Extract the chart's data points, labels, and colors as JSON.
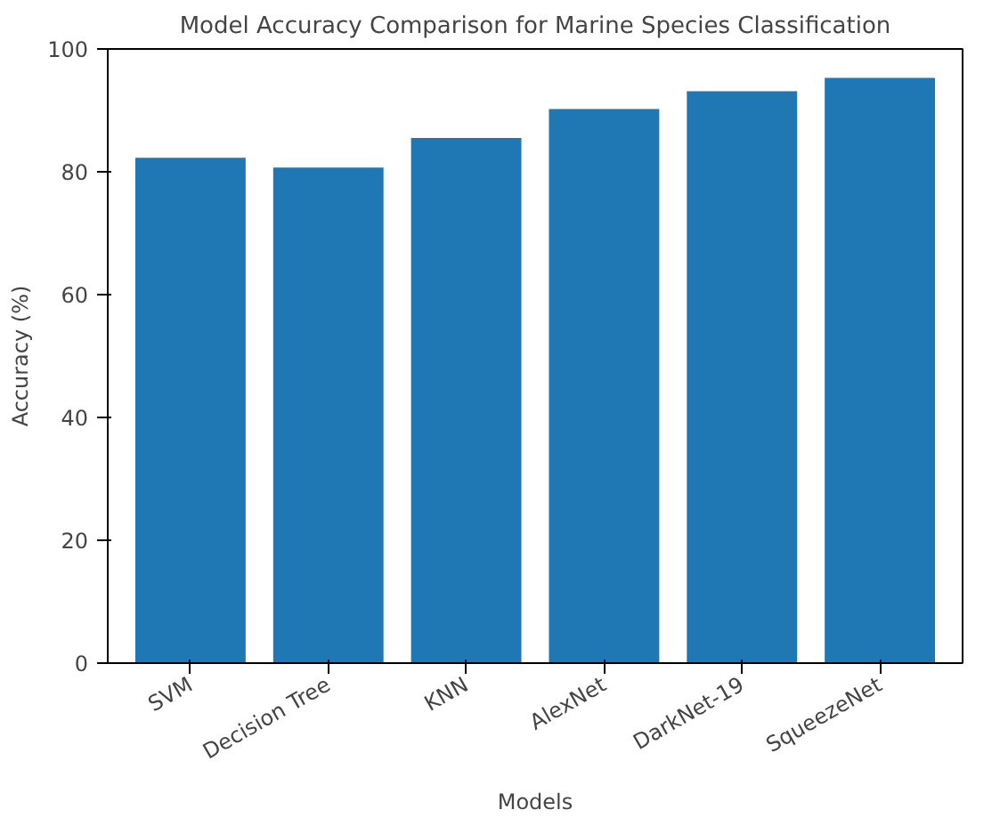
{
  "chart_data": {
    "type": "bar",
    "title": "Model Accuracy Comparison for Marine Species Classification",
    "xlabel": "Models",
    "ylabel": "Accuracy (%)",
    "categories": [
      "SVM",
      "Decision Tree",
      "KNN",
      "AlexNet",
      "DarkNet-19",
      "SqueezeNet"
    ],
    "values": [
      82.3,
      80.7,
      85.5,
      90.2,
      93.1,
      95.3
    ],
    "color": "#1f77b4",
    "ylim": [
      0,
      100
    ],
    "yticks": [
      0,
      20,
      40,
      60,
      80,
      100
    ],
    "grid": false
  }
}
